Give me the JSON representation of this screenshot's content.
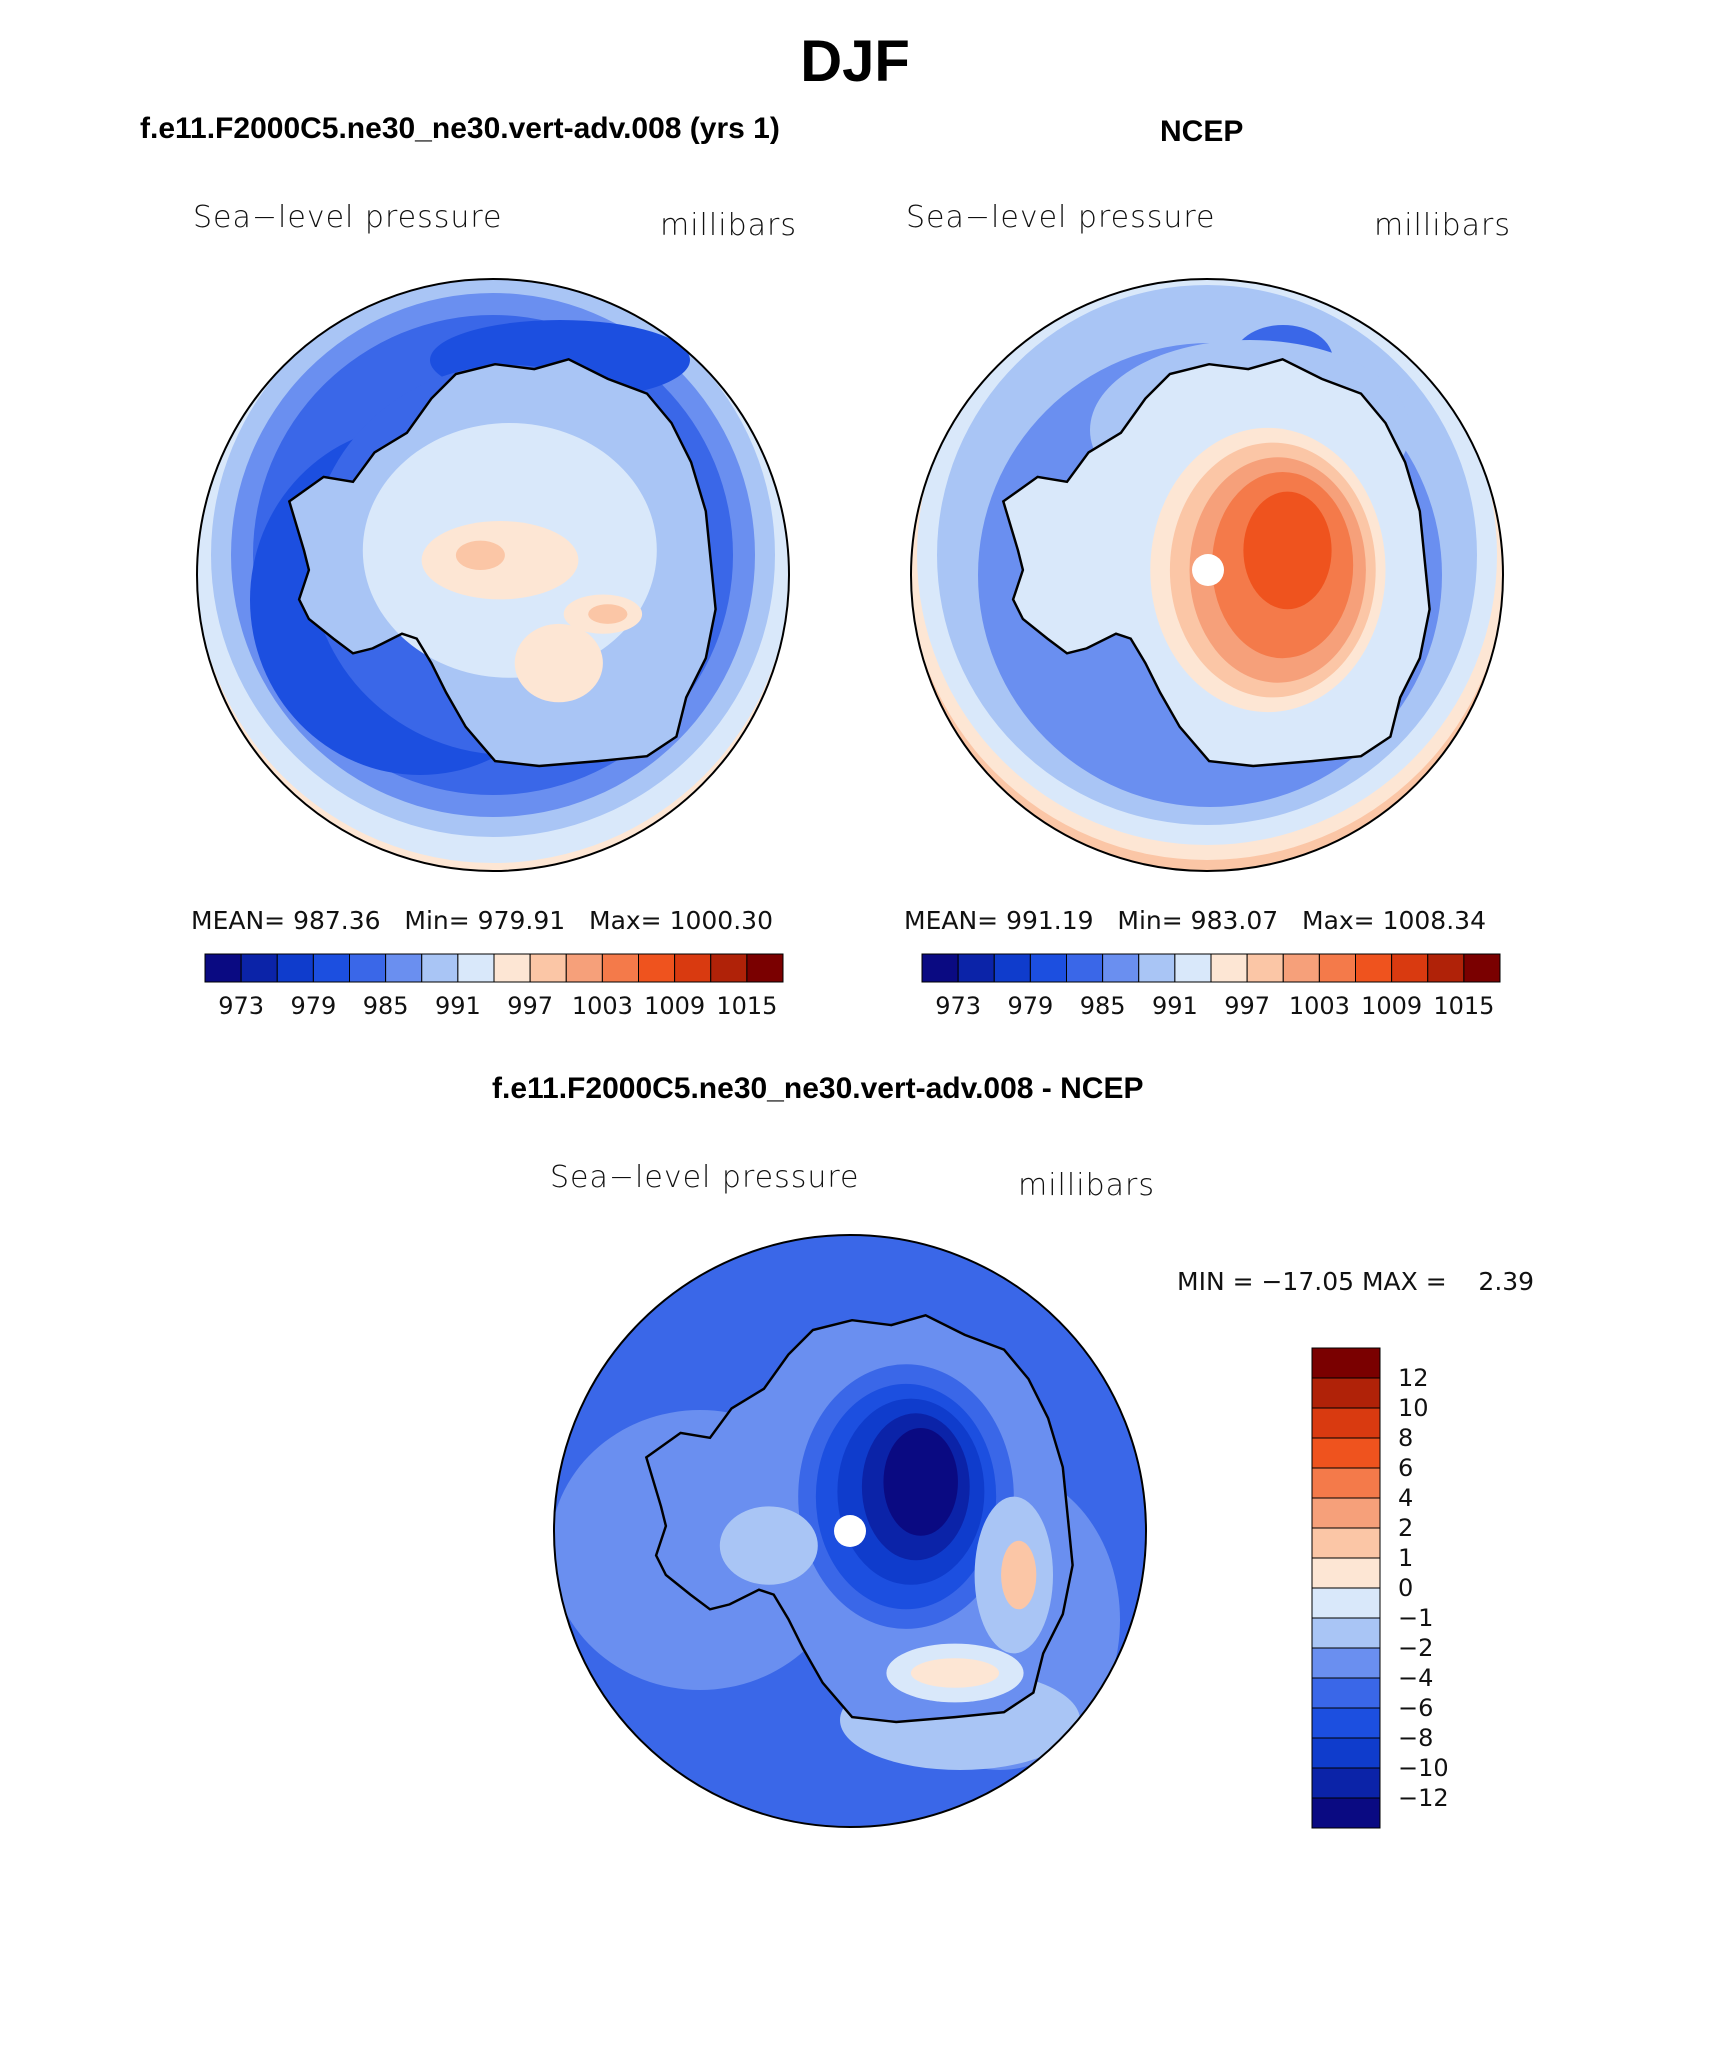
{
  "title": "DJF",
  "colors": {
    "scale": [
      "#0a0a82",
      "#0b23a8",
      "#0f3ccc",
      "#1c4fe0",
      "#3a67e8",
      "#6a8ff0",
      "#a9c5f5",
      "#d9e8fa",
      "#fde6d4",
      "#fbc6a6",
      "#f6a07a",
      "#f47a4a",
      "#ef531e",
      "#d93a10",
      "#b02208",
      "#7a0000"
    ],
    "coast": "#000000",
    "pole_dot": "#ffffff"
  },
  "panels": [
    {
      "title": "f.e11.F2000C5.ne30_ne30.vert-adv.008 (yrs 1)",
      "variable": "Sea−level pressure",
      "units": "millibars",
      "stats": {
        "mean_label": "MEAN=",
        "mean": "987.36",
        "min_label": "Min=",
        "min": "979.91",
        "max_label": "Max=",
        "max": "1000.30"
      },
      "colorbar_ticks": [
        "973",
        "979",
        "985",
        "991",
        "997",
        "1003",
        "1009",
        "1015"
      ]
    },
    {
      "title": "NCEP",
      "variable": "Sea−level pressure",
      "units": "millibars",
      "stats": {
        "mean_label": "MEAN=",
        "mean": "991.19",
        "min_label": "Min=",
        "min": "983.07",
        "max_label": "Max=",
        "max": "1008.34"
      },
      "colorbar_ticks": [
        "973",
        "979",
        "985",
        "991",
        "997",
        "1003",
        "1009",
        "1015"
      ]
    },
    {
      "title": "f.e11.F2000C5.ne30_ne30.vert-adv.008 - NCEP",
      "variable": "Sea−level pressure",
      "units": "millibars",
      "stats_text": "MIN = −17.05 MAX =    2.39",
      "colorbar_ticks": [
        "12",
        "10",
        "8",
        "6",
        "4",
        "2",
        "1",
        "0",
        "−1",
        "−2",
        "−4",
        "−6",
        "−8",
        "−10",
        "−12"
      ]
    }
  ]
}
